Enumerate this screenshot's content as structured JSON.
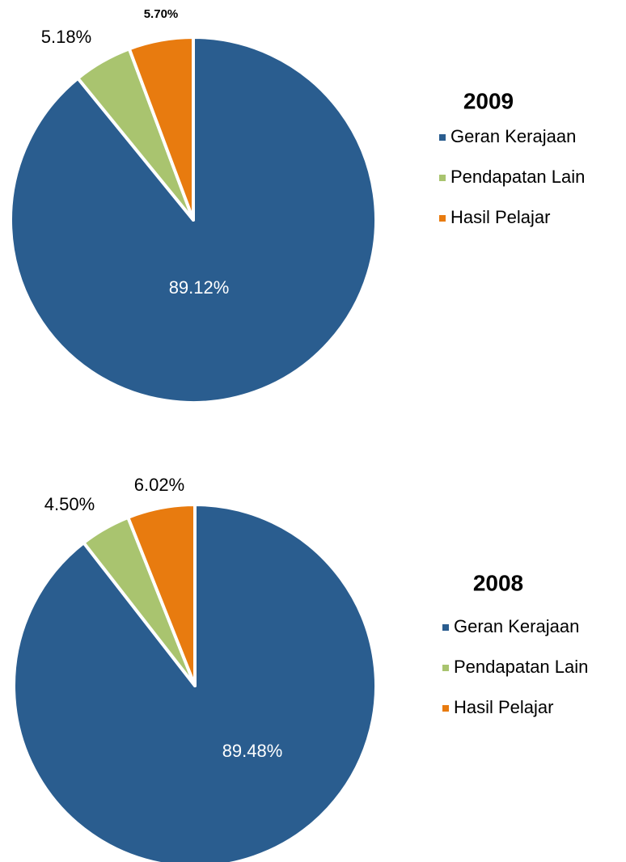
{
  "chart_data": [
    {
      "type": "pie",
      "title": "2009",
      "categories": [
        "Geran Kerajaan",
        "Pendapatan Lain",
        "Hasil Pelajar"
      ],
      "values": [
        89.12,
        5.18,
        5.7
      ],
      "value_labels": [
        "89.12%",
        "5.18%",
        "5.70%"
      ],
      "colors": [
        "#2a5d8f",
        "#a9c46f",
        "#e87b0f"
      ]
    },
    {
      "type": "pie",
      "title": "2008",
      "categories": [
        "Geran Kerajaan",
        "Pendapatan Lain",
        "Hasil Pelajar"
      ],
      "values": [
        89.48,
        4.5,
        6.02
      ],
      "value_labels": [
        "89.48%",
        "4.50%",
        "6.02%"
      ],
      "colors": [
        "#2a5d8f",
        "#a9c46f",
        "#e87b0f"
      ]
    }
  ]
}
